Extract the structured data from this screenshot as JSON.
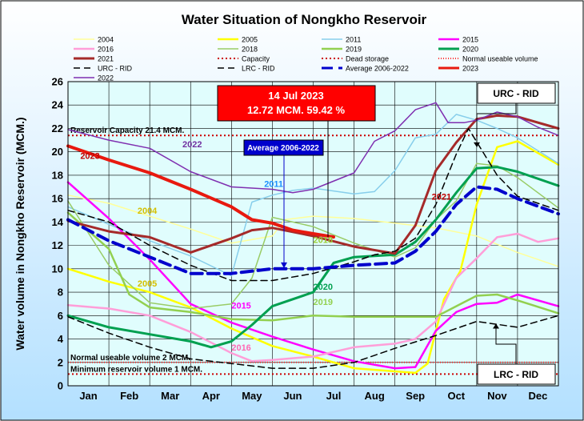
{
  "chart_data": {
    "type": "line",
    "title": "Water Situation of Nongkho Reservoir",
    "ylabel": "Water volume in Nongkho Reservoir (MCM.)",
    "xlabel": "",
    "ylim": [
      0,
      26
    ],
    "yticks": [
      0,
      2,
      4,
      6,
      8,
      10,
      12,
      14,
      16,
      18,
      20,
      22,
      24,
      26
    ],
    "categories": [
      "Jan",
      "Feb",
      "Mar",
      "Apr",
      "May",
      "Jun",
      "Jul",
      "Aug",
      "Sep",
      "Oct",
      "Nov",
      "Dec"
    ],
    "grid": true,
    "legend_position": "top",
    "series": [
      {
        "name": "2004",
        "color": "#ffff99",
        "width": 1.5,
        "dash": "",
        "x": [
          0,
          1,
          2,
          3,
          4,
          5,
          5.3,
          6,
          7,
          8,
          9,
          10,
          11,
          12
        ],
        "y": [
          16.3,
          15.6,
          14.5,
          13.4,
          12.2,
          12.8,
          14.2,
          14.5,
          14.3,
          13.9,
          13.5,
          12.8,
          11.4,
          10.2
        ]
      },
      {
        "name": "2005",
        "color": "#ffff00",
        "width": 2.5,
        "dash": "",
        "x": [
          0,
          1,
          2,
          3,
          4,
          5,
          6,
          7,
          8.5,
          8.8,
          9.2,
          9.6,
          10,
          10.5,
          11,
          12
        ],
        "y": [
          10.0,
          8.9,
          8.0,
          6.7,
          4.9,
          3.4,
          2.5,
          1.5,
          1.1,
          1.9,
          7.4,
          9.8,
          15.5,
          20.4,
          20.9,
          18.9
        ]
      },
      {
        "name": "2011",
        "color": "#87ceeb",
        "width": 1.5,
        "dash": "",
        "x": [
          0,
          1,
          2,
          3,
          4,
          4.5,
          5,
          5.5,
          6,
          7,
          7.5,
          8,
          8.5,
          9,
          9.5,
          10,
          10.5,
          11,
          12
        ],
        "y": [
          15.3,
          13.8,
          12.4,
          11.1,
          9.4,
          15.7,
          16.3,
          16.7,
          16.9,
          16.4,
          16.6,
          18.4,
          21.2,
          21.5,
          23.2,
          22.7,
          22.0,
          21.2,
          19.0
        ]
      },
      {
        "name": "2015",
        "color": "#ff00ff",
        "width": 2.5,
        "dash": "",
        "x": [
          0,
          1,
          2,
          3,
          4,
          5,
          6,
          7,
          8,
          8.5,
          9,
          9.5,
          10,
          10.5,
          11,
          12
        ],
        "y": [
          17.4,
          14.3,
          10.8,
          7.0,
          5.4,
          4.2,
          3.1,
          2.1,
          1.5,
          1.6,
          4.7,
          6.3,
          7.0,
          7.1,
          7.8,
          6.8
        ]
      },
      {
        "name": "2016",
        "color": "#ff9ed8",
        "width": 2.5,
        "dash": "",
        "x": [
          0,
          1,
          2,
          3,
          4,
          4.5,
          5,
          6,
          7,
          8,
          8.5,
          9,
          9.5,
          10,
          10.5,
          11,
          11.5,
          12
        ],
        "y": [
          6.9,
          6.6,
          6.0,
          4.6,
          2.8,
          2.1,
          2.2,
          2.5,
          3.3,
          3.6,
          4.0,
          5.5,
          9.2,
          10.9,
          12.7,
          13.0,
          12.3,
          12.6
        ]
      },
      {
        "name": "2018",
        "color": "#99cc66",
        "width": 1.5,
        "dash": "",
        "x": [
          0,
          1,
          2,
          3,
          4,
          4.5,
          5,
          6,
          7,
          8,
          8.5,
          9,
          9.5,
          10,
          10.5,
          11,
          12
        ],
        "y": [
          15.8,
          10.3,
          7.1,
          6.6,
          7.0,
          9.2,
          14.4,
          13.6,
          12.2,
          11.0,
          11.8,
          14.2,
          15.8,
          19.0,
          18.8,
          17.8,
          15.2
        ]
      },
      {
        "name": "2019",
        "color": "#92d050",
        "width": 2.5,
        "dash": "",
        "x": [
          0,
          1,
          1.5,
          2,
          3,
          4,
          5,
          6,
          7,
          8,
          9,
          9.5,
          10,
          10.5,
          11,
          12
        ],
        "y": [
          14.8,
          11.7,
          7.8,
          6.7,
          6.3,
          5.7,
          5.6,
          6.0,
          5.9,
          5.9,
          5.9,
          6.8,
          7.7,
          7.8,
          7.3,
          6.2
        ]
      },
      {
        "name": "2020",
        "color": "#00a050",
        "width": 3,
        "dash": "",
        "x": [
          0,
          1,
          2,
          3,
          3.5,
          4,
          4.5,
          5,
          6,
          6.5,
          7,
          8,
          8.5,
          9,
          9.5,
          10,
          10.5,
          11,
          12
        ],
        "y": [
          6.0,
          5.0,
          4.4,
          3.8,
          3.3,
          3.8,
          5.2,
          6.8,
          8.0,
          10.5,
          11.0,
          11.2,
          12.3,
          14.2,
          16.5,
          18.6,
          18.7,
          18.3,
          17.1
        ]
      },
      {
        "name": "2021",
        "color": "#a52a2a",
        "width": 3,
        "dash": "",
        "x": [
          0,
          1,
          2,
          3,
          4,
          4.5,
          5,
          6,
          7,
          8,
          8.5,
          9,
          9.5,
          10,
          10.5,
          11,
          12
        ],
        "y": [
          14.1,
          13.2,
          12.7,
          11.4,
          12.6,
          13.3,
          13.5,
          12.8,
          11.9,
          11.3,
          13.7,
          18.4,
          20.8,
          22.8,
          23.1,
          23.0,
          22.0
        ]
      },
      {
        "name": "URC - RID",
        "color": "#000000",
        "width": 1.5,
        "dash": "8,5",
        "x": [
          0,
          1,
          2,
          3,
          4,
          5,
          6,
          7,
          7.5,
          8,
          8.5,
          9,
          9.5,
          9.8,
          10.5,
          11,
          12
        ],
        "y": [
          15.0,
          14.0,
          12.0,
          10.3,
          9.0,
          9.0,
          9.6,
          10.6,
          11.2,
          11.5,
          12.6,
          15.5,
          19.8,
          22.0,
          18.0,
          16.2,
          15.0
        ]
      },
      {
        "name": "LRC - RID",
        "color": "#000000",
        "width": 1.5,
        "dash": "8,5",
        "x": [
          0,
          1,
          2,
          3,
          4,
          5,
          6,
          7,
          8,
          9,
          10,
          11,
          12
        ],
        "y": [
          5.9,
          4.5,
          3.3,
          2.3,
          1.9,
          1.5,
          1.5,
          2.0,
          3.2,
          4.3,
          5.5,
          5.0,
          6.0
        ]
      },
      {
        "name": "Average 2006-2022",
        "color": "#0000cc",
        "width": 4,
        "dash": "14,7",
        "x": [
          0,
          1,
          2,
          3,
          4,
          5,
          6,
          7,
          8,
          8.5,
          9,
          9.5,
          10,
          10.5,
          11,
          12
        ],
        "y": [
          14.2,
          12.4,
          11.0,
          9.6,
          9.6,
          10.0,
          10.0,
          10.3,
          10.5,
          11.5,
          13.2,
          15.5,
          17.0,
          16.8,
          16.0,
          14.7
        ]
      },
      {
        "name": "2022",
        "color": "#7f2fb0",
        "width": 1.5,
        "dash": "",
        "x": [
          0,
          1,
          2,
          3,
          4,
          5,
          5.5,
          6,
          7,
          7.5,
          8,
          8.5,
          9,
          9.3,
          9.7,
          10,
          10.5,
          11,
          11.5,
          12
        ],
        "y": [
          21.9,
          21.0,
          20.3,
          18.3,
          17.0,
          16.8,
          16.5,
          16.8,
          18.2,
          20.9,
          21.8,
          23.6,
          24.2,
          22.5,
          22.5,
          22.7,
          23.4,
          23.0,
          22.1,
          21.4
        ]
      },
      {
        "name": "2023",
        "color": "#e8190f",
        "width": 4,
        "dash": "",
        "x": [
          0,
          1,
          2,
          3,
          4,
          4.5,
          5,
          5.5,
          6,
          6.5
        ],
        "y": [
          20.5,
          19.3,
          18.2,
          16.8,
          15.3,
          14.2,
          13.9,
          13.3,
          13.0,
          12.72
        ]
      }
    ],
    "reference_lines": [
      {
        "name": "Capacity",
        "value": 21.4,
        "color": "#cc0000",
        "dash": "2,3",
        "label": "Reservoir Capacity 21.4 MCM."
      },
      {
        "name": "Dead storage",
        "value": 1.0,
        "color": "#cc0000",
        "dash": "2,3",
        "label": "Minimum reservoir volume 1 MCM."
      },
      {
        "name": "Normal useable volume",
        "value": 2.0,
        "color": "#ff3333",
        "dash": "1,2",
        "label": "Normal useable volume 2 MCM."
      }
    ],
    "annotations": {
      "callout_date": "14 Jul 2023",
      "callout_value": "12.72 MCM. 59.42 %",
      "average_box": "Average 2006-2022",
      "urc_box": "URC - RID",
      "lrc_box": "LRC - RID"
    },
    "series_labels": [
      {
        "text": "2023",
        "series": "2023"
      },
      {
        "text": "2022",
        "series": "2022"
      },
      {
        "text": "2011",
        "series": "2011"
      },
      {
        "text": "2004",
        "series": "2004"
      },
      {
        "text": "2018",
        "series": "2018"
      },
      {
        "text": "2021",
        "series": "2021"
      },
      {
        "text": "2005",
        "series": "2005"
      },
      {
        "text": "2015",
        "series": "2015"
      },
      {
        "text": "2020",
        "series": "2020"
      },
      {
        "text": "2019",
        "series": "2019"
      },
      {
        "text": "2016",
        "series": "2016"
      }
    ]
  }
}
